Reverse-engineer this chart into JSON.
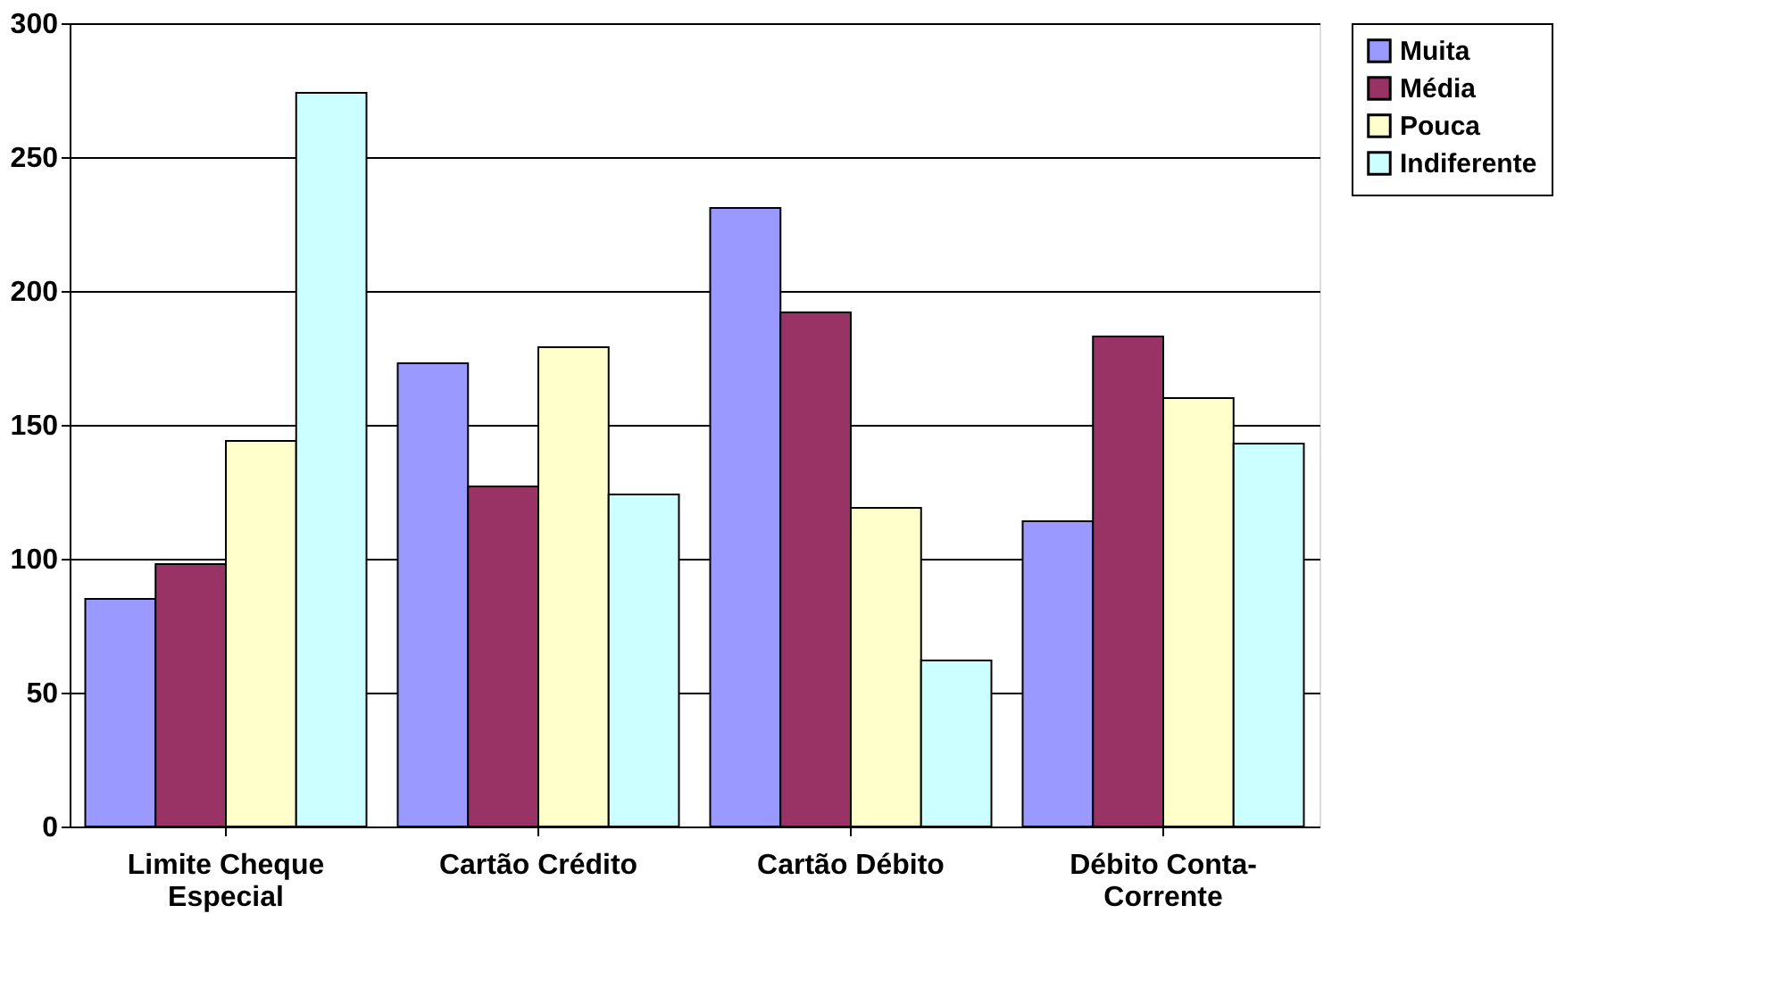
{
  "chart_data": {
    "type": "bar",
    "categories": [
      "Limite Cheque Especial",
      "Cartão Crédito",
      "Cartão Débito",
      "Débito Conta-Corrente"
    ],
    "series": [
      {
        "name": "Muita",
        "color": "#9999ff",
        "values": [
          85,
          173,
          231,
          114
        ]
      },
      {
        "name": "Média",
        "color": "#993366",
        "values": [
          98,
          127,
          192,
          183
        ]
      },
      {
        "name": "Pouca",
        "color": "#ffffcc",
        "values": [
          144,
          179,
          119,
          160
        ]
      },
      {
        "name": "Indiferente",
        "color": "#ccffff",
        "values": [
          274,
          124,
          62,
          143
        ]
      }
    ],
    "ylim": [
      0,
      300
    ],
    "yticks": [
      0,
      50,
      100,
      150,
      200,
      250,
      300
    ],
    "grid": "y",
    "legend": "right"
  }
}
